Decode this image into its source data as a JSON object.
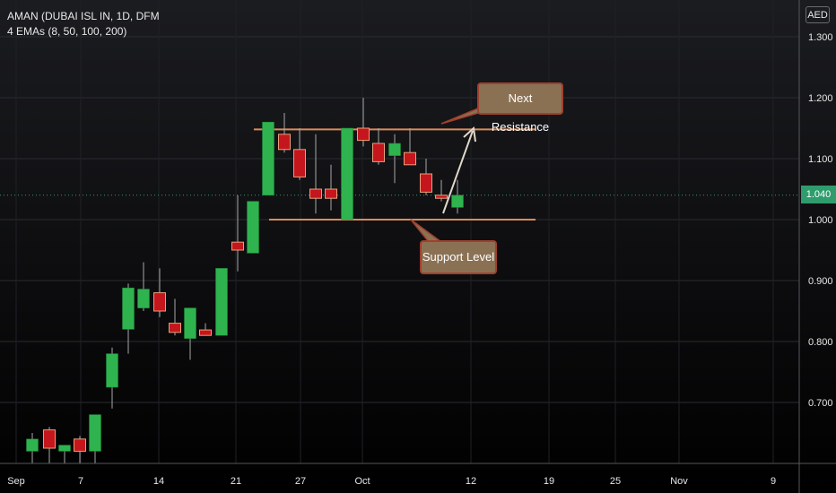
{
  "header": {
    "symbol_line": "AMAN (DUBAI ISL IN, 1D, DFM",
    "indicator_line": "4 EMAs (8, 50, 100, 200)"
  },
  "currency": "AED",
  "last_price_label": "1.040",
  "annotations": {
    "resistance_label": "Next Resistance",
    "support_label": "Support Level"
  },
  "colors": {
    "up": "#2fb34e",
    "down": "#c4161c",
    "level_line": "#d98c5a",
    "callout_fill": "#8b7154",
    "callout_border": "#a0402e",
    "last_price": "#2e9c6c",
    "axis_text": "#e8e8e8"
  },
  "chart_data": {
    "type": "candlestick",
    "title": "",
    "ylim": [
      0.6,
      1.35
    ],
    "y_ticks": [
      "1.300",
      "1.200",
      "1.100",
      "1.000",
      "0.900",
      "0.800",
      "0.700"
    ],
    "x_ticks": [
      "Sep",
      "7",
      "14",
      "21",
      "27",
      "Oct",
      "12",
      "19",
      "25",
      "Nov",
      "9"
    ],
    "grid": true,
    "levels": {
      "resistance": 1.148,
      "support": 1.0
    },
    "candles": [
      {
        "date": "Sep 2",
        "open": 0.62,
        "high": 0.65,
        "low": 0.6,
        "close": 0.64
      },
      {
        "date": "Sep 3",
        "open": 0.655,
        "high": 0.66,
        "low": 0.6,
        "close": 0.625
      },
      {
        "date": "Sep 4",
        "open": 0.62,
        "high": 0.63,
        "low": 0.6,
        "close": 0.63
      },
      {
        "date": "Sep 5",
        "open": 0.64,
        "high": 0.645,
        "low": 0.6,
        "close": 0.62
      },
      {
        "date": "Sep 6",
        "open": 0.62,
        "high": 0.68,
        "low": 0.6,
        "close": 0.68
      },
      {
        "date": "Sep 9",
        "open": 0.725,
        "high": 0.79,
        "low": 0.69,
        "close": 0.78
      },
      {
        "date": "Sep 10",
        "open": 0.82,
        "high": 0.895,
        "low": 0.78,
        "close": 0.888
      },
      {
        "date": "Sep 11",
        "open": 0.855,
        "high": 0.93,
        "low": 0.85,
        "close": 0.886
      },
      {
        "date": "Sep 12",
        "open": 0.88,
        "high": 0.92,
        "low": 0.84,
        "close": 0.85
      },
      {
        "date": "Sep 13",
        "open": 0.83,
        "high": 0.87,
        "low": 0.81,
        "close": 0.815
      },
      {
        "date": "Sep 16",
        "open": 0.805,
        "high": 0.85,
        "low": 0.77,
        "close": 0.855
      },
      {
        "date": "Sep 17",
        "open": 0.819,
        "high": 0.83,
        "low": 0.81,
        "close": 0.81
      },
      {
        "date": "Sep 18",
        "open": 0.81,
        "high": 0.92,
        "low": 0.81,
        "close": 0.92
      },
      {
        "date": "Sep 19",
        "open": 0.963,
        "high": 1.04,
        "low": 0.915,
        "close": 0.95
      },
      {
        "date": "Sep 20",
        "open": 0.945,
        "high": 1.03,
        "low": 0.945,
        "close": 1.03
      },
      {
        "date": "Sep 23",
        "open": 1.04,
        "high": 1.16,
        "low": 1.04,
        "close": 1.16
      },
      {
        "date": "Sep 24",
        "open": 1.14,
        "high": 1.175,
        "low": 1.11,
        "close": 1.115
      },
      {
        "date": "Sep 25",
        "open": 1.115,
        "high": 1.15,
        "low": 1.065,
        "close": 1.07
      },
      {
        "date": "Sep 26",
        "open": 1.05,
        "high": 1.14,
        "low": 1.01,
        "close": 1.035
      },
      {
        "date": "Sep 27",
        "open": 1.05,
        "high": 1.09,
        "low": 1.015,
        "close": 1.035
      },
      {
        "date": "Sep 30",
        "open": 1.0,
        "high": 1.15,
        "low": 1.0,
        "close": 1.15
      },
      {
        "date": "Oct 1",
        "open": 1.15,
        "high": 1.2,
        "low": 1.12,
        "close": 1.13
      },
      {
        "date": "Oct 2",
        "open": 1.125,
        "high": 1.15,
        "low": 1.09,
        "close": 1.095
      },
      {
        "date": "Oct 3",
        "open": 1.105,
        "high": 1.14,
        "low": 1.06,
        "close": 1.125
      },
      {
        "date": "Oct 4",
        "open": 1.11,
        "high": 1.15,
        "low": 1.09,
        "close": 1.09
      },
      {
        "date": "Oct 7",
        "open": 1.075,
        "high": 1.1,
        "low": 1.04,
        "close": 1.045
      },
      {
        "date": "Oct 8",
        "open": 1.04,
        "high": 1.065,
        "low": 1.03,
        "close": 1.035
      },
      {
        "date": "Oct 9",
        "open": 1.02,
        "high": 1.065,
        "low": 1.01,
        "close": 1.04
      }
    ]
  }
}
